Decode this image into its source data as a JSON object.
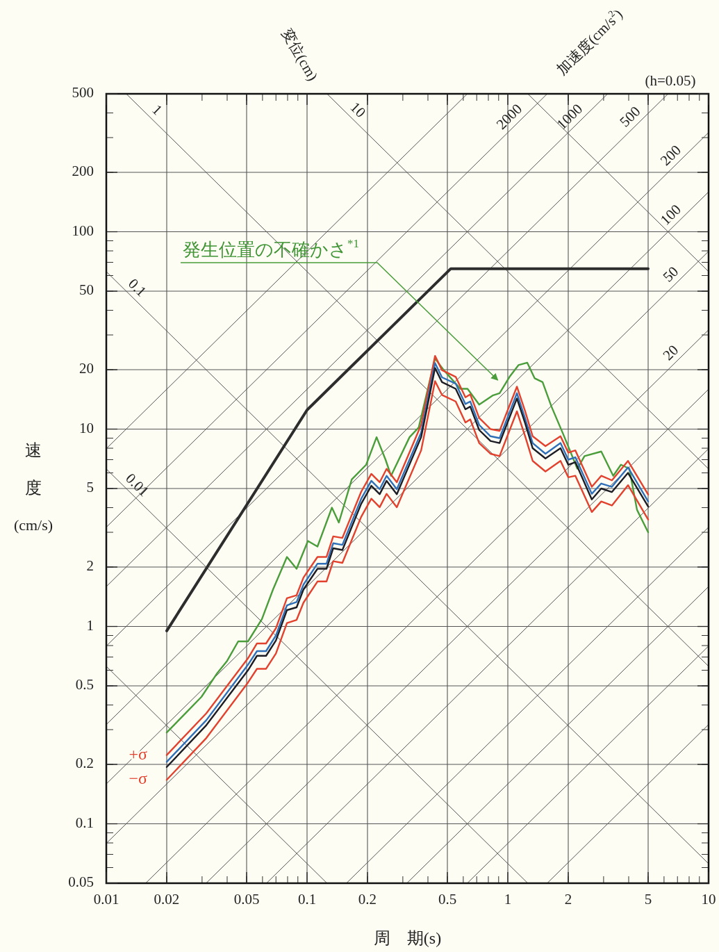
{
  "chart_data": {
    "type": "line",
    "xlabel": "周　期(s)",
    "ylabel": "速度(cm/s)",
    "log": "xy",
    "grid": true,
    "xlim": [
      0.01,
      10
    ],
    "xticks": [
      0.01,
      0.02,
      0.05,
      0.1,
      0.2,
      0.5,
      1,
      2,
      5,
      10
    ],
    "ylim": [
      0.05,
      500
    ],
    "yticks": [
      0.05,
      0.1,
      0.2,
      0.5,
      1,
      2,
      5,
      10,
      20,
      50,
      100,
      200,
      500
    ],
    "annotations": [
      "変位(cm)",
      "加速度(cm/s$^{2}$)",
      "(h=0.05)",
      {
        "text": "発生位置の不確かさ$^{*1}$",
        "x": 0.92,
        "y": 17
      }
    ],
    "series": [
      {
        "color": "#555555",
        "x": [
          0.01,
          0.1257
        ],
        "values": [
          0.628,
          0.05
        ]
      },
      {
        "name": "0.01",
        "color": "#555555",
        "x": [
          0.01,
          1.257
        ],
        "values": [
          6.283,
          0.05
        ]
      },
      {
        "name": "0.1",
        "color": "#555555",
        "x": [
          0.01,
          10
        ],
        "values": [
          62.83,
          0.0628
        ]
      },
      {
        "name": "1",
        "color": "#555555",
        "x": [
          0.01257,
          10
        ],
        "values": [
          500,
          0.6283
        ]
      },
      {
        "name": "10",
        "color": "#555555",
        "x": [
          0.1257,
          10
        ],
        "values": [
          500,
          6.283
        ]
      },
      {
        "color": "#555555",
        "x": [
          1.257,
          10
        ],
        "values": [
          500,
          62.83
        ]
      },
      {
        "color": "#555555",
        "x": [
          1.571,
          10
        ],
        "values": [
          0.05,
          0.3183
        ]
      },
      {
        "color": "#555555",
        "x": [
          0.6283,
          10
        ],
        "values": [
          0.05,
          0.7958
        ]
      },
      {
        "color": "#555555",
        "x": [
          0.3142,
          10
        ],
        "values": [
          0.05,
          1.592
        ]
      },
      {
        "color": "#555555",
        "x": [
          0.1571,
          10
        ],
        "values": [
          0.05,
          3.183
        ]
      },
      {
        "color": "#555555",
        "x": [
          0.06283,
          10
        ],
        "values": [
          0.05,
          7.958
        ]
      },
      {
        "color": "#555555",
        "x": [
          0.03142,
          10
        ],
        "values": [
          0.05,
          15.92
        ]
      },
      {
        "name": "20",
        "color": "#555555",
        "x": [
          0.01571,
          10
        ],
        "values": [
          0.05,
          31.83
        ]
      },
      {
        "name": "50",
        "color": "#555555",
        "x": [
          0.01,
          10
        ],
        "values": [
          0.07958,
          79.58
        ]
      },
      {
        "name": "100",
        "color": "#555555",
        "x": [
          0.01,
          10
        ],
        "values": [
          0.1592,
          159.2
        ]
      },
      {
        "name": "200",
        "color": "#555555",
        "x": [
          0.01,
          10
        ],
        "values": [
          0.3183,
          318.3
        ]
      },
      {
        "name": "500",
        "color": "#555555",
        "x": [
          0.01,
          6.283
        ],
        "values": [
          0.7958,
          500
        ]
      },
      {
        "name": "1000",
        "color": "#555555",
        "x": [
          0.01,
          3.142
        ],
        "values": [
          1.592,
          500
        ]
      },
      {
        "name": "2000",
        "color": "#555555",
        "x": [
          0.01,
          1.571
        ],
        "values": [
          3.183,
          500
        ]
      },
      {
        "color": "#555555",
        "x": [
          0.01,
          0.6283
        ],
        "values": [
          7.958,
          500
        ]
      },
      {
        "color": "#2d2d2d",
        "x": [
          0.02,
          0.1,
          0.52,
          5
        ],
        "values": [
          0.95,
          12.5,
          65,
          65
        ]
      },
      {
        "color": "#4a9d3a",
        "x": [
          0.02,
          0.0298,
          0.0357,
          0.04,
          0.0454,
          0.0508,
          0.0596,
          0.0677,
          0.0794,
          0.0887,
          0.101,
          0.1127,
          0.133,
          0.144,
          0.167,
          0.197,
          0.222,
          0.246,
          0.262,
          0.324,
          0.36,
          0.434,
          0.48,
          0.58,
          0.63,
          0.72,
          0.84,
          0.91,
          1.02,
          1.13,
          1.25,
          1.36,
          1.49,
          1.65,
          1.89,
          2.22,
          2.41,
          2.92,
          3.35,
          3.66,
          4.03,
          4.4,
          5.0
        ],
        "values": [
          0.29,
          0.44,
          0.58,
          0.67,
          0.84,
          0.84,
          1.09,
          1.54,
          2.25,
          1.96,
          2.71,
          2.54,
          4.0,
          3.36,
          5.56,
          6.6,
          9.1,
          7.0,
          5.8,
          9.1,
          10.2,
          22.8,
          19.9,
          16.0,
          16.0,
          13.3,
          14.8,
          15.2,
          18.4,
          21.1,
          21.7,
          18.1,
          17.3,
          13.0,
          9.4,
          6.3,
          7.3,
          7.7,
          5.8,
          6.6,
          6.3,
          3.9,
          3.0
        ]
      },
      {
        "name": "+σ",
        "color": "#e2412e",
        "x": [
          0.02,
          0.0315,
          0.0508,
          0.0563,
          0.0625,
          0.07,
          0.0794,
          0.0887,
          0.096,
          0.1127,
          0.125,
          0.135,
          0.15,
          0.186,
          0.209,
          0.23,
          0.249,
          0.28,
          0.37,
          0.434,
          0.47,
          0.55,
          0.615,
          0.65,
          0.72,
          0.82,
          0.91,
          1.11,
          1.22,
          1.33,
          1.54,
          1.83,
          2.0,
          2.17,
          2.62,
          2.92,
          3.3,
          3.97,
          5.0
        ],
        "values": [
          0.223,
          0.363,
          0.69,
          0.82,
          0.82,
          0.98,
          1.39,
          1.44,
          1.77,
          2.25,
          2.25,
          2.86,
          2.81,
          4.81,
          5.93,
          5.38,
          6.29,
          5.38,
          10.5,
          23.5,
          19.9,
          18.4,
          14.5,
          15.0,
          11.4,
          10.0,
          9.8,
          16.4,
          12.3,
          9.2,
          8.2,
          9.2,
          7.6,
          7.8,
          5.1,
          5.8,
          5.5,
          6.9,
          4.66
        ]
      },
      {
        "color": "#2f6fb8",
        "x": [
          0.02,
          0.0315,
          0.0508,
          0.0563,
          0.0625,
          0.07,
          0.0794,
          0.0887,
          0.096,
          0.1127,
          0.125,
          0.135,
          0.15,
          0.186,
          0.209,
          0.23,
          0.249,
          0.28,
          0.37,
          0.434,
          0.47,
          0.55,
          0.615,
          0.65,
          0.72,
          0.82,
          0.91,
          1.11,
          1.22,
          1.33,
          1.54,
          1.83,
          2.0,
          2.17,
          2.62,
          2.92,
          3.3,
          3.97,
          5.0
        ],
        "values": [
          0.206,
          0.335,
          0.64,
          0.75,
          0.75,
          0.9,
          1.28,
          1.33,
          1.63,
          2.08,
          2.08,
          2.64,
          2.59,
          4.43,
          5.47,
          4.96,
          5.8,
          4.96,
          9.6,
          21.6,
          18.3,
          17.0,
          13.4,
          13.8,
          10.5,
          9.2,
          9.0,
          15.2,
          11.3,
          8.5,
          7.5,
          8.5,
          7.0,
          7.2,
          4.7,
          5.3,
          5.1,
          6.4,
          4.3
        ]
      },
      {
        "name": "−σ",
        "color": "#e2412e",
        "x": [
          0.02,
          0.0315,
          0.0508,
          0.0563,
          0.0625,
          0.07,
          0.0794,
          0.0887,
          0.096,
          0.1127,
          0.125,
          0.135,
          0.15,
          0.186,
          0.209,
          0.23,
          0.249,
          0.28,
          0.37,
          0.434,
          0.47,
          0.55,
          0.615,
          0.65,
          0.72,
          0.82,
          0.91,
          1.11,
          1.22,
          1.33,
          1.54,
          1.83,
          2.0,
          2.17,
          2.62,
          2.92,
          3.3,
          3.97,
          5.0
        ],
        "values": [
          0.167,
          0.272,
          0.52,
          0.61,
          0.61,
          0.73,
          1.04,
          1.08,
          1.32,
          1.69,
          1.69,
          2.14,
          2.1,
          3.59,
          4.44,
          4.02,
          4.7,
          4.02,
          7.8,
          17.5,
          14.9,
          13.8,
          10.8,
          11.2,
          8.5,
          7.5,
          7.3,
          12.3,
          9.2,
          6.9,
          6.1,
          6.9,
          5.7,
          5.8,
          3.8,
          4.3,
          4.1,
          5.2,
          3.48
        ]
      },
      {
        "color": "#1c1c24",
        "x": [
          0.02,
          0.0315,
          0.0508,
          0.0563,
          0.0625,
          0.07,
          0.0794,
          0.0887,
          0.096,
          0.1127,
          0.125,
          0.135,
          0.15,
          0.186,
          0.209,
          0.23,
          0.249,
          0.28,
          0.37,
          0.434,
          0.47,
          0.55,
          0.615,
          0.65,
          0.72,
          0.82,
          0.91,
          1.11,
          1.22,
          1.33,
          1.54,
          1.83,
          2.0,
          2.17,
          2.62,
          2.92,
          3.3,
          3.97,
          5.0
        ],
        "values": [
          0.194,
          0.316,
          0.6,
          0.71,
          0.71,
          0.85,
          1.21,
          1.25,
          1.54,
          1.96,
          1.96,
          2.49,
          2.44,
          4.18,
          5.16,
          4.68,
          5.47,
          4.68,
          9.1,
          20.4,
          17.3,
          16.0,
          12.6,
          13.0,
          9.9,
          8.7,
          8.5,
          14.3,
          10.7,
          8.0,
          7.1,
          8.0,
          6.6,
          6.8,
          4.4,
          5.0,
          4.8,
          6.0,
          4.05
        ]
      }
    ]
  }
}
